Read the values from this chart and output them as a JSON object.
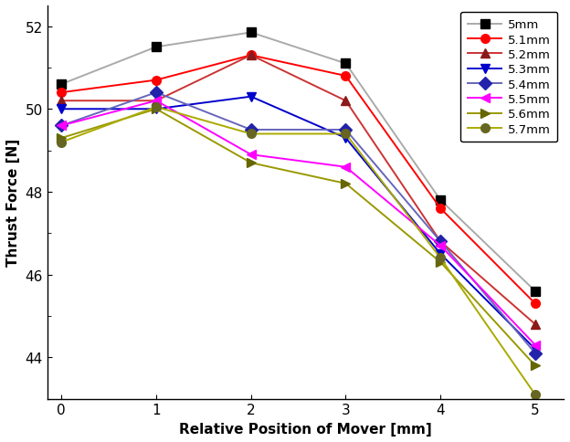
{
  "x": [
    0,
    1,
    2,
    3,
    4,
    5
  ],
  "series": [
    {
      "label": "5mm",
      "line_color": "#aaaaaa",
      "marker": "s",
      "marker_color": "#000000",
      "values": [
        50.6,
        51.5,
        51.85,
        51.1,
        47.8,
        45.6
      ]
    },
    {
      "label": "5.1mm",
      "line_color": "#ff0000",
      "marker": "o",
      "marker_color": "#ff0000",
      "values": [
        50.4,
        50.7,
        51.3,
        50.8,
        47.6,
        45.3
      ]
    },
    {
      "label": "5.2mm",
      "line_color": "#cc3333",
      "marker": "^",
      "marker_color": "#8b1a1a",
      "values": [
        50.2,
        50.2,
        51.3,
        50.2,
        46.8,
        44.8
      ]
    },
    {
      "label": "5.3mm",
      "line_color": "#0000cc",
      "marker": "v",
      "marker_color": "#0000cc",
      "values": [
        50.0,
        50.0,
        50.3,
        49.3,
        46.5,
        44.2
      ]
    },
    {
      "label": "5.4mm",
      "line_color": "#6666bb",
      "marker": "D",
      "marker_color": "#2222aa",
      "values": [
        49.6,
        50.4,
        49.5,
        49.5,
        46.8,
        44.1
      ]
    },
    {
      "label": "5.5mm",
      "line_color": "#ff00ff",
      "marker": "<",
      "marker_color": "#ff00ff",
      "values": [
        49.6,
        50.2,
        48.9,
        48.6,
        46.7,
        44.3
      ]
    },
    {
      "label": "5.6mm",
      "line_color": "#999900",
      "marker": ">",
      "marker_color": "#666600",
      "values": [
        49.3,
        50.0,
        48.7,
        48.2,
        46.3,
        43.8
      ]
    },
    {
      "label": "5.7mm",
      "line_color": "#aaaa00",
      "marker": "o",
      "marker_color": "#666622",
      "values": [
        49.2,
        50.05,
        49.4,
        49.4,
        46.4,
        43.1
      ]
    }
  ],
  "xlabel": "Relative Position of Mover [mm]",
  "ylabel": "Thrust Force [N]",
  "xlim": [
    -0.15,
    5.3
  ],
  "ylim": [
    43.0,
    52.5
  ],
  "yticks": [
    44,
    46,
    48,
    50,
    52
  ],
  "xticks": [
    0,
    1,
    2,
    3,
    4,
    5
  ],
  "background_color": "#ffffff"
}
